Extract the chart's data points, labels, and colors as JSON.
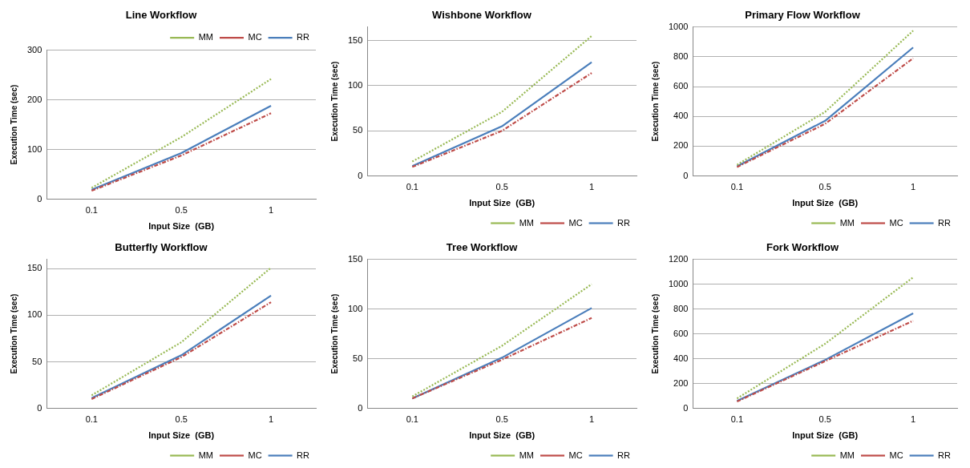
{
  "chart_data": [
    {
      "type": "line",
      "title": "Line Workflow",
      "xlabel": "Input Size  (GB)",
      "ylabel": "Execution Time (sec)",
      "categories": [
        "0.1",
        "0.5",
        "1"
      ],
      "ylim": [
        0,
        300
      ],
      "yticks": [
        0,
        100,
        200,
        300
      ],
      "grid": "y",
      "legend": "top right",
      "marker": "none",
      "series": [
        {
          "name": "RR",
          "color": "#4a7ebb",
          "line_style": "solid",
          "values": [
            19,
            93,
            188
          ]
        },
        {
          "name": "MC",
          "color": "#be4b48",
          "line_style": "dashed",
          "values": [
            17,
            88,
            173
          ]
        },
        {
          "name": "MM",
          "color": "#98b954",
          "line_style": "dotted",
          "values": [
            23,
            125,
            242
          ]
        }
      ]
    },
    {
      "type": "line",
      "title": "Wishbone Workflow",
      "xlabel": "Input Size  (GB)",
      "ylabel": "Execution Time (sec)",
      "categories": [
        "0.1",
        "0.5",
        "1"
      ],
      "ylim": [
        0,
        165
      ],
      "yticks": [
        0,
        50,
        100,
        150
      ],
      "grid": "y",
      "legend": "bottom right",
      "marker": "none",
      "series": [
        {
          "name": "RR",
          "color": "#4a7ebb",
          "line_style": "solid",
          "values": [
            11,
            55,
            126
          ]
        },
        {
          "name": "MC",
          "color": "#be4b48",
          "line_style": "dashed",
          "values": [
            10,
            50,
            114
          ]
        },
        {
          "name": "MM",
          "color": "#98b954",
          "line_style": "dotted",
          "values": [
            16,
            71,
            155
          ]
        }
      ]
    },
    {
      "type": "line",
      "title": "Primary Flow Workflow",
      "xlabel": "Input Size  (GB)",
      "ylabel": "Execution Time (sec)",
      "categories": [
        "0.1",
        "0.5",
        "1"
      ],
      "ylim": [
        0,
        1000
      ],
      "yticks": [
        0,
        200,
        400,
        600,
        800,
        1000
      ],
      "grid": "y",
      "legend": "bottom right",
      "marker": "none",
      "series": [
        {
          "name": "RR",
          "color": "#4a7ebb",
          "line_style": "solid",
          "values": [
            65,
            370,
            862
          ]
        },
        {
          "name": "MC",
          "color": "#be4b48",
          "line_style": "dashed",
          "values": [
            60,
            350,
            790
          ]
        },
        {
          "name": "MM",
          "color": "#98b954",
          "line_style": "dotted",
          "values": [
            75,
            430,
            975
          ]
        }
      ]
    },
    {
      "type": "line",
      "title": "Butterfly Workflow",
      "xlabel": "Input Size  (GB)",
      "ylabel": "Execution Time (sec)",
      "categories": [
        "0.1",
        "0.5",
        "1"
      ],
      "ylim": [
        0,
        160
      ],
      "yticks": [
        0,
        50,
        100,
        150
      ],
      "grid": "y",
      "legend": "bottom right",
      "marker": "none",
      "series": [
        {
          "name": "RR",
          "color": "#4a7ebb",
          "line_style": "solid",
          "values": [
            11,
            57,
            121
          ]
        },
        {
          "name": "MC",
          "color": "#be4b48",
          "line_style": "dashed",
          "values": [
            10,
            55,
            114
          ]
        },
        {
          "name": "MM",
          "color": "#98b954",
          "line_style": "dotted",
          "values": [
            14,
            71,
            151
          ]
        }
      ]
    },
    {
      "type": "line",
      "title": "Tree Workflow",
      "xlabel": "Input Size  (GB)",
      "ylabel": "Execution Time (sec)",
      "categories": [
        "0.1",
        "0.5",
        "1"
      ],
      "ylim": [
        0,
        150
      ],
      "yticks": [
        0,
        50,
        100,
        150
      ],
      "grid": "y",
      "legend": "bottom right",
      "marker": "none",
      "series": [
        {
          "name": "RR",
          "color": "#4a7ebb",
          "line_style": "solid",
          "values": [
            10,
            51,
            101
          ]
        },
        {
          "name": "MC",
          "color": "#be4b48",
          "line_style": "dashed",
          "values": [
            10,
            49,
            91
          ]
        },
        {
          "name": "MM",
          "color": "#98b954",
          "line_style": "dotted",
          "values": [
            12,
            63,
            125
          ]
        }
      ]
    },
    {
      "type": "line",
      "title": "Fork Workflow",
      "xlabel": "Input Size  (GB)",
      "ylabel": "Execution Time (sec)",
      "categories": [
        "0.1",
        "0.5",
        "1"
      ],
      "ylim": [
        0,
        1200
      ],
      "yticks": [
        0,
        200,
        400,
        600,
        800,
        1000,
        1200
      ],
      "grid": "y",
      "legend": "bottom right",
      "marker": "none",
      "series": [
        {
          "name": "RR",
          "color": "#4a7ebb",
          "line_style": "solid",
          "values": [
            60,
            390,
            765
          ]
        },
        {
          "name": "MC",
          "color": "#be4b48",
          "line_style": "dashed",
          "values": [
            55,
            380,
            705
          ]
        },
        {
          "name": "MM",
          "color": "#98b954",
          "line_style": "dotted",
          "values": [
            80,
            520,
            1055
          ]
        }
      ]
    }
  ]
}
